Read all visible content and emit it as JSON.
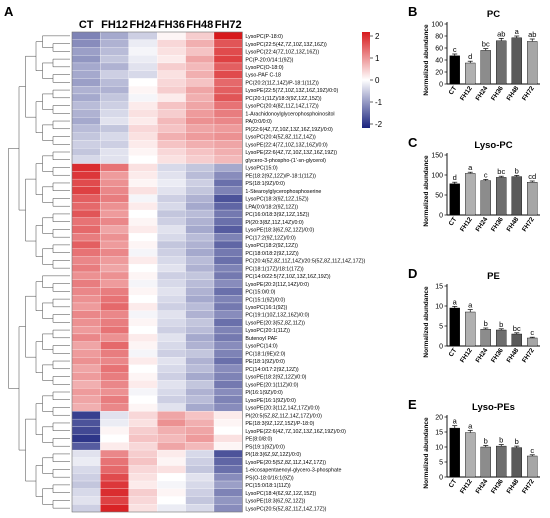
{
  "panel_labels": [
    "A",
    "B",
    "C",
    "D",
    "E"
  ],
  "heatmap": {
    "columns": [
      "CT",
      "FH12",
      "FH24",
      "FH36",
      "FH48",
      "FH72"
    ],
    "colorbar_ticks": [
      "2",
      "1",
      "0",
      "-1",
      "-2"
    ],
    "colors": {
      "high": "#d7191c",
      "mid": "#ffffff",
      "low": "#1a237e"
    },
    "rows": [
      {
        "label": "LysoPC(P-18:0)",
        "values": [
          -1.3,
          -0.9,
          -0.5,
          0.1,
          0.5,
          2.4
        ]
      },
      {
        "label": "LysoPC(22:5(4Z,7Z,10Z,13Z,16Z))",
        "values": [
          -1.2,
          -0.8,
          -0.2,
          0.4,
          0.8,
          1.7
        ]
      },
      {
        "label": "LysoPC(22:4(7Z,10Z,13Z,16Z))",
        "values": [
          -1.0,
          -0.7,
          -0.1,
          0.3,
          0.6,
          1.8
        ]
      },
      {
        "label": "PC(P-20:0/14:1(9Z))",
        "values": [
          -1.1,
          -0.6,
          -0.2,
          0.2,
          0.9,
          1.9
        ]
      },
      {
        "label": "LysoPC(O-18:0)",
        "values": [
          -0.9,
          -0.8,
          -0.3,
          0.5,
          0.7,
          1.6
        ]
      },
      {
        "label": "Lyso-PAF C-18",
        "values": [
          -0.9,
          -0.5,
          -0.4,
          0.3,
          0.8,
          1.8
        ]
      },
      {
        "label": "PC(20:2(11Z,14Z)/P-18:1(11Z))",
        "values": [
          -1.0,
          -0.7,
          0.0,
          0.4,
          0.6,
          1.5
        ]
      },
      {
        "label": "LysoPE(22:5(7Z,10Z,13Z,16Z,19Z)/0:0)",
        "values": [
          -0.8,
          -0.8,
          0.1,
          0.5,
          0.9,
          1.6
        ]
      },
      {
        "label": "PC(20:1(11Z)/18:3(9Z,12Z,15Z))",
        "values": [
          -0.9,
          -0.6,
          -0.1,
          0.2,
          0.8,
          1.7
        ]
      },
      {
        "label": "LysoPC(20:4(8Z,11Z,14Z,17Z))",
        "values": [
          -0.7,
          -0.5,
          0.2,
          0.6,
          0.9,
          1.4
        ]
      },
      {
        "label": "1-Arachidonoylglycerophosphoinositol",
        "values": [
          -0.8,
          -0.4,
          0.3,
          0.5,
          1.0,
          1.3
        ]
      },
      {
        "label": "PA(0:0/0:0)",
        "values": [
          -0.9,
          -0.3,
          0.2,
          0.7,
          1.1,
          1.2
        ]
      },
      {
        "label": "PI(22:6(4Z,7Z,10Z,13Z,16Z,19Z)/0:0)",
        "values": [
          -0.7,
          -0.6,
          0.4,
          0.6,
          0.9,
          1.0
        ]
      },
      {
        "label": "LysoPC(20:4(5Z,8Z,11Z,14Z))",
        "values": [
          -0.6,
          -0.4,
          0.3,
          0.8,
          1.0,
          1.1
        ]
      },
      {
        "label": "LysoPE(22:4(7Z,10Z,13Z,16Z)/0:0)",
        "values": [
          -0.5,
          -0.5,
          0.2,
          0.6,
          0.8,
          0.9
        ]
      },
      {
        "label": "LysoPE(22:6(4Z,7Z,10Z,13Z,16Z,19Z))",
        "values": [
          -0.6,
          -0.3,
          0.1,
          0.4,
          0.6,
          0.8
        ]
      },
      {
        "label": "glycero-3-phospho-(1'-sn-glycerol)",
        "values": [
          -0.4,
          -0.3,
          0.0,
          0.3,
          0.5,
          0.7
        ]
      },
      {
        "label": "LysoPC(15:0)",
        "values": [
          2.1,
          1.4,
          0.3,
          -0.4,
          -0.6,
          -0.9
        ]
      },
      {
        "label": "PE(18:2(9Z,12Z)/P-18:1(11Z))",
        "values": [
          2.0,
          1.0,
          0.2,
          -0.3,
          -0.7,
          -1.2
        ]
      },
      {
        "label": "PS(18:1(9Z)/0:0)",
        "values": [
          1.8,
          1.1,
          0.1,
          -0.2,
          -0.5,
          -1.5
        ]
      },
      {
        "label": "1-Stearoylglycerophosphoserine",
        "values": [
          1.9,
          1.2,
          0.3,
          -0.3,
          -0.6,
          -1.3
        ]
      },
      {
        "label": "LysoPC(18:3(9Z,12Z,15Z))",
        "values": [
          1.6,
          1.3,
          -0.1,
          -0.5,
          -0.8,
          -1.8
        ]
      },
      {
        "label": "LPA(0:0/18:2(9Z,12Z))",
        "values": [
          1.5,
          1.1,
          0.2,
          -0.4,
          -0.9,
          -1.6
        ]
      },
      {
        "label": "PC(16:0/18:3(9Z,12Z,15Z))",
        "values": [
          1.7,
          1.0,
          0.0,
          -0.6,
          -0.7,
          -1.4
        ]
      },
      {
        "label": "PI(20:3(8Z,11Z,14Z)/0:0)",
        "values": [
          1.4,
          1.2,
          0.1,
          -0.5,
          -0.8,
          -1.5
        ]
      },
      {
        "label": "LysoPE(18:3(6Z,9Z,12Z)/0:0)",
        "values": [
          1.5,
          0.9,
          0.2,
          -0.3,
          -0.9,
          -1.7
        ]
      },
      {
        "label": "PC(17:2(9Z,12Z)/0:0)",
        "values": [
          1.3,
          1.1,
          0.0,
          -0.4,
          -0.7,
          -1.3
        ]
      },
      {
        "label": "LysoPC(18:2(9Z,12Z))",
        "values": [
          1.6,
          1.0,
          0.1,
          -0.6,
          -0.8,
          -1.6
        ]
      },
      {
        "label": "PC(18:0/18:2(9Z,12Z))",
        "values": [
          1.4,
          1.2,
          -0.1,
          -0.5,
          -0.9,
          -1.4
        ]
      },
      {
        "label": "PC(20:4(5Z,8Z,11Z,14Z)/20:5(5Z,8Z,11Z,14Z,17Z))",
        "values": [
          1.2,
          1.0,
          0.2,
          -0.4,
          -0.7,
          -1.5
        ]
      },
      {
        "label": "PC(18:1(17Z)/18:1(17Z))",
        "values": [
          1.3,
          0.9,
          0.0,
          -0.3,
          -0.8,
          -1.3
        ]
      },
      {
        "label": "PC(14:0/22:5(7Z,10Z,13Z,16Z,19Z))",
        "values": [
          1.1,
          1.1,
          0.1,
          -0.5,
          -0.6,
          -1.4
        ]
      },
      {
        "label": "LysoPE(20:2(11Z,14Z)/0:0)",
        "values": [
          1.3,
          1.0,
          -0.1,
          -0.4,
          -0.7,
          -1.2
        ]
      },
      {
        "label": "PC(15:0/0:0)",
        "values": [
          1.2,
          1.3,
          0.1,
          -0.3,
          -0.8,
          -1.5
        ]
      },
      {
        "label": "PC(15:1(9Z)/0:0)",
        "values": [
          1.1,
          1.4,
          0.0,
          -0.4,
          -0.9,
          -1.3
        ]
      },
      {
        "label": "LysoPC(16:1(9Z))",
        "values": [
          1.0,
          1.5,
          0.2,
          -0.5,
          -0.7,
          -1.4
        ]
      },
      {
        "label": "PC(19:1(10Z,13Z,16Z)/0:0)",
        "values": [
          1.2,
          1.2,
          -0.1,
          -0.3,
          -0.8,
          -1.2
        ]
      },
      {
        "label": "LysoPE(20:3(5Z,8Z,11Z))",
        "values": [
          1.1,
          1.3,
          0.1,
          -0.4,
          -0.6,
          -1.5
        ]
      },
      {
        "label": "LysoPC(20:1(11Z))",
        "values": [
          1.0,
          1.4,
          0.0,
          -0.5,
          -0.7,
          -1.3
        ]
      },
      {
        "label": "Butenoyl PAF",
        "values": [
          1.2,
          1.1,
          0.2,
          -0.3,
          -0.9,
          -1.4
        ]
      },
      {
        "label": "LysoPC(14:0)",
        "values": [
          0.9,
          1.5,
          0.1,
          -0.4,
          -0.8,
          -1.2
        ]
      },
      {
        "label": "PC(18:1(9E)/2:0)",
        "values": [
          1.0,
          1.3,
          -0.1,
          -0.5,
          -0.6,
          -1.3
        ]
      },
      {
        "label": "PE(18:1(9Z)/0:0)",
        "values": [
          1.1,
          1.2,
          0.2,
          -0.3,
          -0.8,
          -1.5
        ]
      },
      {
        "label": "PC(14:0/17:2(9Z,12Z))",
        "values": [
          0.9,
          1.4,
          0.0,
          -0.4,
          -0.7,
          -1.2
        ]
      },
      {
        "label": "LysoPE(18:2(9Z,12Z)/0:0)",
        "values": [
          1.0,
          1.3,
          0.1,
          -0.5,
          -0.9,
          -1.3
        ]
      },
      {
        "label": "LysoPE(20:1(11Z)/0:0)",
        "values": [
          0.8,
          1.2,
          0.2,
          -0.3,
          -0.6,
          -1.4
        ]
      },
      {
        "label": "PI(16:1(9Z)/0:0)",
        "values": [
          1.0,
          1.1,
          -0.1,
          -0.4,
          -0.8,
          -1.2
        ]
      },
      {
        "label": "LysoPE(16:1(9Z)/0:0)",
        "values": [
          0.9,
          1.3,
          0.0,
          -0.5,
          -0.7,
          -1.3
        ]
      },
      {
        "label": "LysoPE(20:3(11Z,14Z,17Z)/0:0)",
        "values": [
          0.8,
          1.2,
          0.1,
          -0.3,
          -0.9,
          -1.2
        ]
      },
      {
        "label": "PI(20:5(5Z,8Z,11Z,14Z,17Z)/0:0)",
        "values": [
          -2.0,
          -0.3,
          0.4,
          0.9,
          0.6,
          0.2
        ]
      },
      {
        "label": "PE(18:3(9Z,12Z,15Z)/P-18:0)",
        "values": [
          -1.8,
          -0.2,
          0.3,
          1.1,
          0.8,
          0.1
        ]
      },
      {
        "label": "LysoPE(22:6(4Z,7Z,10Z,13Z,16Z,19Z)/0:0)",
        "values": [
          -1.9,
          0.1,
          0.5,
          0.8,
          0.9,
          0.0
        ]
      },
      {
        "label": "PE(8:0/8:0)",
        "values": [
          -2.1,
          0.0,
          0.6,
          0.7,
          1.0,
          0.3
        ]
      },
      {
        "label": "PS(19:1(9Z)/0:0)",
        "values": [
          -1.7,
          0.2,
          0.4,
          0.9,
          0.7,
          0.1
        ]
      },
      {
        "label": "PI(18:3(6Z,9Z,12Z)/0:0)",
        "values": [
          -0.3,
          1.2,
          0.5,
          0.2,
          -0.4,
          -1.8
        ]
      },
      {
        "label": "LysoPE(20:5(5Z,8Z,11Z,14Z,17Z))",
        "values": [
          -0.2,
          1.4,
          0.6,
          0.1,
          -0.5,
          -1.6
        ]
      },
      {
        "label": "1-eicosapentaenoyl-glycero-3-phosphate",
        "values": [
          -0.4,
          1.5,
          0.4,
          0.3,
          -0.6,
          -1.5
        ]
      },
      {
        "label": "PS(O-18:0/16:1(9Z))",
        "values": [
          -0.5,
          1.8,
          0.3,
          0.0,
          -0.3,
          -1.2
        ]
      },
      {
        "label": "PC(15:0/18:1(11Z))",
        "values": [
          -0.6,
          2.0,
          0.2,
          -0.1,
          -0.4,
          -1.0
        ]
      },
      {
        "label": "LysoPC(18:4(6Z,9Z,12Z,15Z))",
        "values": [
          -0.4,
          2.1,
          0.5,
          0.1,
          -0.5,
          -1.3
        ]
      },
      {
        "label": "LysoPE(18:3(6Z,9Z,12Z))",
        "values": [
          -0.3,
          1.9,
          0.4,
          0.0,
          -0.6,
          -1.1
        ]
      },
      {
        "label": "LysoPC(20:5(5Z,8Z,11Z,14Z,17Z))",
        "values": [
          -0.5,
          2.2,
          0.3,
          -0.2,
          -0.4,
          -1.2
        ]
      }
    ]
  },
  "chart_data": [
    {
      "type": "bar",
      "panel": "B",
      "title": "PC",
      "ylabel": "Normalized abundance",
      "categories": [
        "CT",
        "FH12",
        "FH24",
        "FH36",
        "FH48",
        "FH72"
      ],
      "values": [
        47,
        35,
        56,
        72,
        77,
        71
      ],
      "errors": [
        3,
        3,
        3,
        4,
        3,
        4
      ],
      "sig_letters": [
        "c",
        "d",
        "bc",
        "ab",
        "a",
        "ab"
      ],
      "ylim": [
        0,
        100
      ],
      "yticks": [
        0,
        20,
        40,
        60,
        80,
        100
      ],
      "colors": [
        "#000000",
        "#b0b0b0",
        "#8c8c8c",
        "#6e6e6e",
        "#5a5a5a",
        "#a6a6a6"
      ]
    },
    {
      "type": "bar",
      "panel": "C",
      "title": "Lyso-PC",
      "ylabel": "Normalized abundance",
      "categories": [
        "CT",
        "FH12",
        "FH24",
        "FH36",
        "FH48",
        "FH72"
      ],
      "values": [
        78,
        104,
        86,
        94,
        96,
        82
      ],
      "errors": [
        4,
        3,
        3,
        3,
        3,
        3
      ],
      "sig_letters": [
        "d",
        "a",
        "c",
        "bc",
        "b",
        "cd"
      ],
      "ylim": [
        0,
        150
      ],
      "yticks": [
        0,
        50,
        100,
        150
      ],
      "colors": [
        "#000000",
        "#b0b0b0",
        "#8c8c8c",
        "#6e6e6e",
        "#5a5a5a",
        "#a6a6a6"
      ]
    },
    {
      "type": "bar",
      "panel": "D",
      "title": "PE",
      "ylabel": "Normalized abundance",
      "categories": [
        "CT",
        "FH12",
        "FH24",
        "FH36",
        "FH48",
        "FH72"
      ],
      "values": [
        9.5,
        8.5,
        4.2,
        4.0,
        3.0,
        2.0
      ],
      "errors": [
        0.4,
        0.6,
        0.3,
        0.3,
        0.3,
        0.2
      ],
      "sig_letters": [
        "a",
        "a",
        "b",
        "b",
        "bc",
        "c"
      ],
      "ylim": [
        0,
        15
      ],
      "yticks": [
        0,
        5,
        10,
        15
      ],
      "colors": [
        "#000000",
        "#b0b0b0",
        "#8c8c8c",
        "#6e6e6e",
        "#5a5a5a",
        "#a6a6a6"
      ]
    },
    {
      "type": "bar",
      "panel": "E",
      "title": "Lyso-PEs",
      "ylabel": "Normalized abundance",
      "categories": [
        "CT",
        "FH12",
        "FH24",
        "FH36",
        "FH48",
        "FH72"
      ],
      "values": [
        16.3,
        14.8,
        10.0,
        10.3,
        9.8,
        7.0
      ],
      "errors": [
        0.8,
        0.7,
        0.5,
        0.5,
        0.5,
        0.4
      ],
      "sig_letters": [
        "a",
        "a",
        "b",
        "b",
        "b",
        "c"
      ],
      "ylim": [
        0,
        20
      ],
      "yticks": [
        0,
        5,
        10,
        15,
        20
      ],
      "colors": [
        "#000000",
        "#b0b0b0",
        "#8c8c8c",
        "#6e6e6e",
        "#5a5a5a",
        "#a6a6a6"
      ]
    }
  ]
}
